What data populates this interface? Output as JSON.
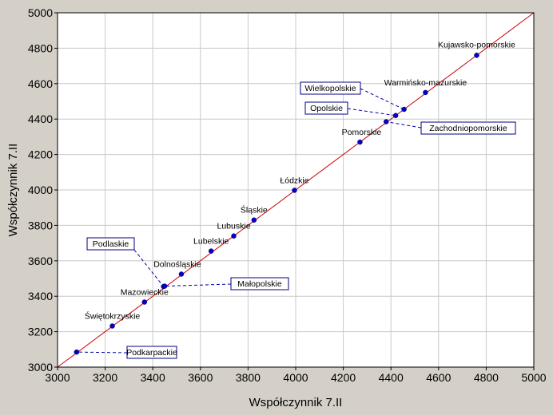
{
  "chart_data": {
    "type": "scatter",
    "xlabel": "Współczynnik 7.II",
    "ylabel": "Współczynnik 7.II",
    "xlim": [
      3000,
      5000
    ],
    "ylim": [
      3000,
      5000
    ],
    "xticks": [
      3000,
      3200,
      3400,
      3600,
      3800,
      4000,
      4200,
      4400,
      4600,
      4800,
      5000
    ],
    "yticks": [
      3000,
      3200,
      3400,
      3600,
      3800,
      4000,
      4200,
      4400,
      4600,
      4800,
      5000
    ],
    "grid": true,
    "reference_line": "y = x",
    "colors": {
      "points": "#0000cc",
      "line": "#cc0000",
      "background": "#d4d0c8",
      "plot_background": "#ffffff",
      "grid": "#c8c8c8"
    },
    "points": [
      {
        "label": "Podkarpackie",
        "x": 3080,
        "y": 3085,
        "boxed": true
      },
      {
        "label": "Świętokrzyskie",
        "x": 3230,
        "y": 3232,
        "boxed": false
      },
      {
        "label": "Mazowieckie",
        "x": 3365,
        "y": 3367,
        "boxed": false
      },
      {
        "label": "Podlaskie",
        "x": 3445,
        "y": 3455,
        "boxed": true
      },
      {
        "label": "Małopolskie",
        "x": 3450,
        "y": 3457,
        "boxed": true
      },
      {
        "label": "Dolnośląskie",
        "x": 3520,
        "y": 3525,
        "boxed": false
      },
      {
        "label": "Lubelskie",
        "x": 3645,
        "y": 3655,
        "boxed": false
      },
      {
        "label": "Lubuskie",
        "x": 3740,
        "y": 3740,
        "boxed": false
      },
      {
        "label": "Śląskie",
        "x": 3825,
        "y": 3830,
        "boxed": false
      },
      {
        "label": "Łódzkie",
        "x": 3995,
        "y": 3998,
        "boxed": false
      },
      {
        "label": "Pomorskie",
        "x": 4270,
        "y": 4270,
        "boxed": false
      },
      {
        "label": "Zachodniopomorskie",
        "x": 4380,
        "y": 4385,
        "boxed": true
      },
      {
        "label": "Opolskie",
        "x": 4420,
        "y": 4420,
        "boxed": true
      },
      {
        "label": "Wielkopolskie",
        "x": 4455,
        "y": 4455,
        "boxed": true
      },
      {
        "label": "Warmińsko-mazurskie",
        "x": 4545,
        "y": 4550,
        "boxed": false
      },
      {
        "label": "Kujawsko-pomorskie",
        "x": 4760,
        "y": 4760,
        "boxed": false
      }
    ]
  }
}
